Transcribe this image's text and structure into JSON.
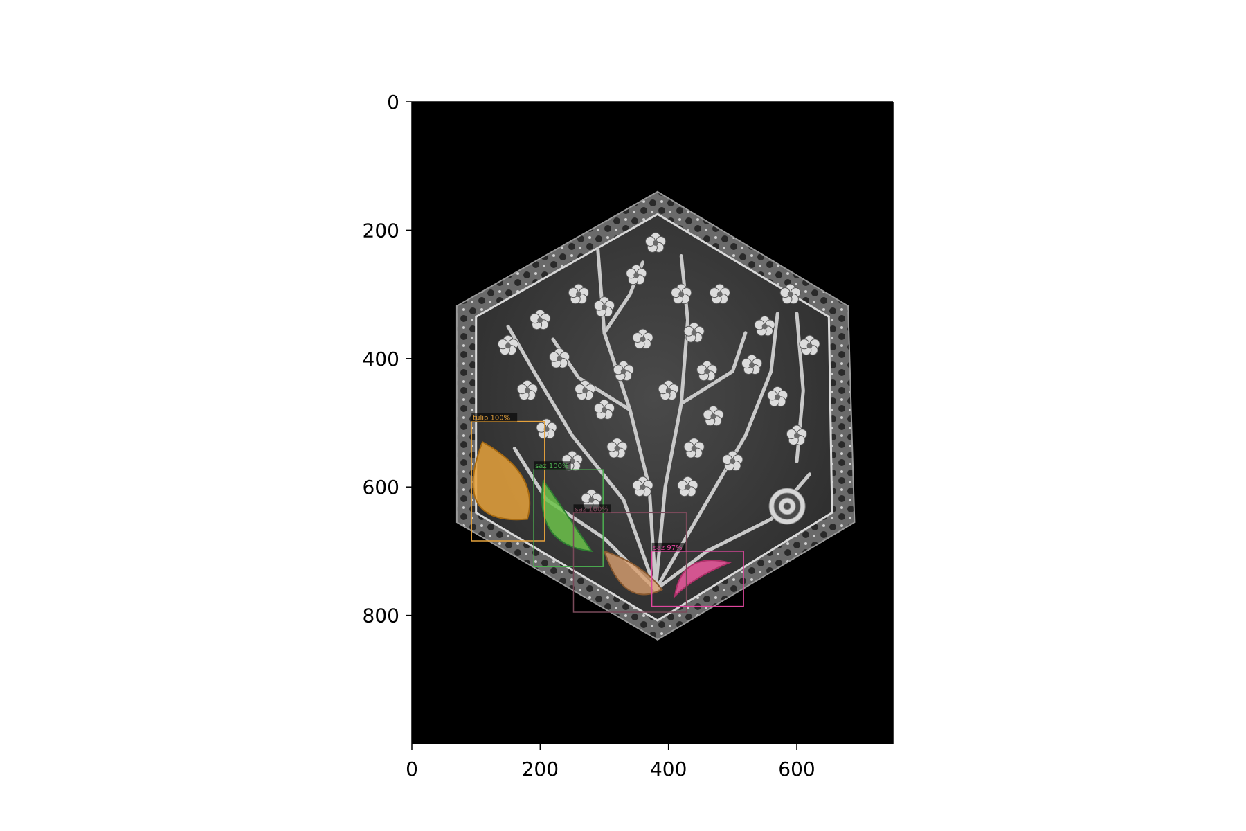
{
  "chart_data": {
    "type": "image-axes",
    "xlabel": "",
    "ylabel": "",
    "xlim": [
      0,
      750
    ],
    "ylim": [
      1000,
      0
    ],
    "x_ticks": [
      0,
      200,
      400,
      600
    ],
    "y_ticks": [
      0,
      200,
      400,
      600,
      800
    ],
    "x_tick_labels": [
      "0",
      "200",
      "400",
      "600"
    ],
    "y_tick_labels": [
      "0",
      "200",
      "400",
      "600",
      "800"
    ],
    "image_subject": "hexagonal-floral-tile-grayscale",
    "detections": [
      {
        "label": "tulip 100%",
        "bbox_data": [
          93,
          498,
          207,
          684
        ],
        "color": "#e6a23c"
      },
      {
        "label": "saz 100%",
        "bbox_data": [
          190,
          573,
          298,
          724
        ],
        "color": "#4caf50"
      },
      {
        "label": "saz 100%",
        "bbox_data": [
          252,
          640,
          428,
          795
        ],
        "color": "#7a4a5a"
      },
      {
        "label": "saz 97%",
        "bbox_data": [
          374,
          700,
          517,
          786
        ],
        "color": "#e0479e"
      }
    ]
  }
}
